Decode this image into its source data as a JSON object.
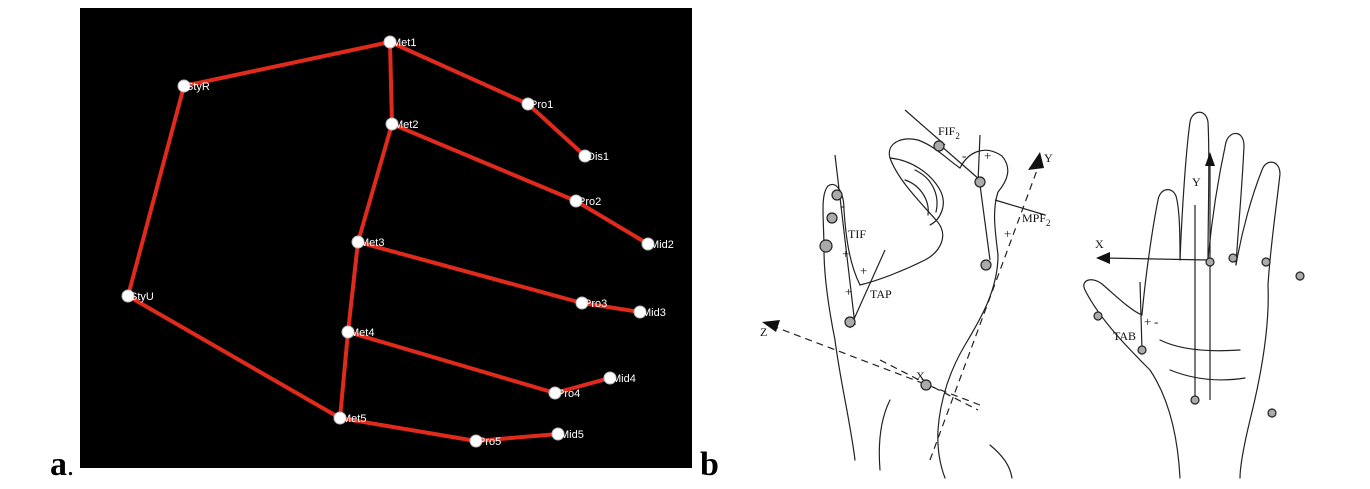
{
  "panel_labels": {
    "a": "a",
    "a_dot": ".",
    "b": "b"
  },
  "skeleton": {
    "node_color": "#ffffff",
    "edge_color": "#e02a1c",
    "nodes": [
      {
        "id": "Met1",
        "label": "Met1"
      },
      {
        "id": "StyR",
        "label": "StyR"
      },
      {
        "id": "StyU",
        "label": "StyU"
      },
      {
        "id": "Met2",
        "label": "Met2"
      },
      {
        "id": "Met3",
        "label": "Met3"
      },
      {
        "id": "Met4",
        "label": "Met4"
      },
      {
        "id": "Met5",
        "label": "Met5"
      },
      {
        "id": "Pro1",
        "label": "Pro1"
      },
      {
        "id": "Dis1",
        "label": "Dis1"
      },
      {
        "id": "Pro2",
        "label": "Pro2"
      },
      {
        "id": "Mid2",
        "label": "Mid2"
      },
      {
        "id": "Pro3",
        "label": "Pro3"
      },
      {
        "id": "Mid3",
        "label": "Mid3"
      },
      {
        "id": "Pro4",
        "label": "Pro4"
      },
      {
        "id": "Mid4",
        "label": "Mid4"
      },
      {
        "id": "Pro5",
        "label": "Pro5"
      },
      {
        "id": "Mid5",
        "label": "Mid5"
      }
    ],
    "edges": [
      [
        "StyR",
        "Met1"
      ],
      [
        "StyR",
        "StyU"
      ],
      [
        "StyU",
        "Met5"
      ],
      [
        "Met1",
        "Met2"
      ],
      [
        "Met1",
        "Pro1"
      ],
      [
        "Pro1",
        "Dis1"
      ],
      [
        "Met2",
        "Met3"
      ],
      [
        "Met2",
        "Pro2"
      ],
      [
        "Pro2",
        "Mid2"
      ],
      [
        "Met3",
        "Met4"
      ],
      [
        "Met3",
        "Pro3"
      ],
      [
        "Pro3",
        "Mid3"
      ],
      [
        "Met4",
        "Met5"
      ],
      [
        "Met4",
        "Pro4"
      ],
      [
        "Pro4",
        "Mid4"
      ],
      [
        "Met5",
        "Pro5"
      ],
      [
        "Pro5",
        "Mid5"
      ]
    ]
  },
  "hand_diagram": {
    "labels": {
      "fif": "FIF",
      "fif_sub": "2",
      "mpf": "MPF",
      "mpf_sub": "2",
      "tif": "TIF",
      "tap": "TAP",
      "tab": "TAB",
      "axis_y1": "Y",
      "axis_z": "Z",
      "axis_x1": "X",
      "axis_y2": "Y",
      "axis_x2": "X"
    },
    "signs": [
      "+",
      "+",
      "+",
      "-",
      "+",
      "+",
      "+",
      "-",
      "-"
    ]
  }
}
